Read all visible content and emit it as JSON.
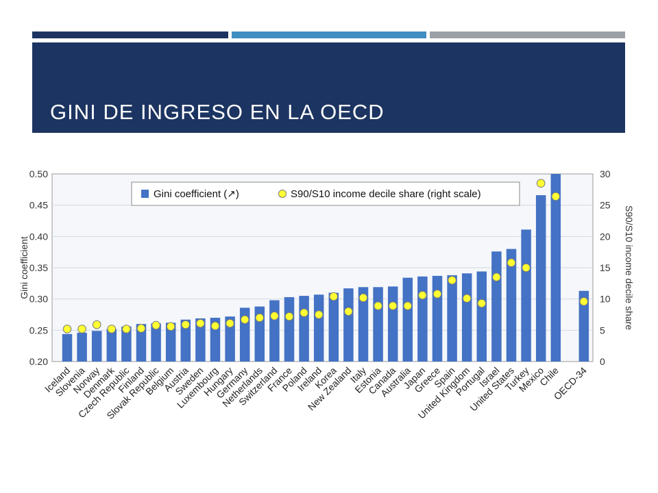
{
  "slide": {
    "title": "GINI DE INGRESO EN LA OECD",
    "colors": {
      "title_band": "#1c3461",
      "accent_dark": "#1c3461",
      "accent_blue": "#3e8ec1",
      "accent_gray": "#9aa0a6"
    }
  },
  "chart_data": {
    "type": "bar",
    "title": "",
    "xlabel": "",
    "ylabel": "Gini coefficient",
    "y2label": "S90/S10 income decile share",
    "ylim": [
      0.2,
      0.5
    ],
    "y2lim": [
      0,
      30
    ],
    "yticks": [
      "0.50",
      "0.45",
      "0.40",
      "0.35",
      "0.30",
      "0.25",
      "0.20"
    ],
    "y2ticks": [
      "30",
      "25",
      "20",
      "15",
      "10",
      "5",
      "0"
    ],
    "grid": true,
    "legend_position": "top",
    "categories": [
      "Iceland",
      "Slovenia",
      "Norway",
      "Denmark",
      "Czech Republic",
      "Finland",
      "Slovak Republic",
      "Belgium",
      "Austria",
      "Sweden",
      "Luxembourg",
      "Hungary",
      "Germany",
      "Netherlands",
      "Switzerland",
      "France",
      "Poland",
      "Ireland",
      "Korea",
      "New Zealand",
      "Italy",
      "Estonia",
      "Canada",
      "Australia",
      "Japan",
      "Greece",
      "Spain",
      "United Kingdom",
      "Portugal",
      "Israel",
      "United States",
      "Turkey",
      "Mexico",
      "Chile",
      "OECD-34"
    ],
    "series": [
      {
        "name": "Gini coefficient (↗)",
        "type": "bar",
        "axis": "left",
        "color": "#4472c4",
        "values": [
          0.244,
          0.246,
          0.249,
          0.252,
          0.256,
          0.26,
          0.261,
          0.262,
          0.267,
          0.269,
          0.27,
          0.272,
          0.286,
          0.288,
          0.298,
          0.303,
          0.305,
          0.307,
          0.31,
          0.317,
          0.319,
          0.319,
          0.32,
          0.334,
          0.336,
          0.337,
          0.338,
          0.341,
          0.344,
          0.376,
          0.38,
          0.411,
          0.466,
          0.503,
          0.313
        ]
      },
      {
        "name": "S90/S10 income decile share (right scale)",
        "type": "scatter",
        "axis": "right",
        "color": "#ffff33",
        "values": [
          5.2,
          5.2,
          5.9,
          5.2,
          5.2,
          5.3,
          5.8,
          5.6,
          5.9,
          6.1,
          5.7,
          6.1,
          6.7,
          7.0,
          7.3,
          7.2,
          7.8,
          7.5,
          10.4,
          8.0,
          10.2,
          8.9,
          8.9,
          8.9,
          10.6,
          10.8,
          13.0,
          10.1,
          9.3,
          13.5,
          15.8,
          15.0,
          28.5,
          26.4,
          9.6
        ]
      }
    ]
  }
}
